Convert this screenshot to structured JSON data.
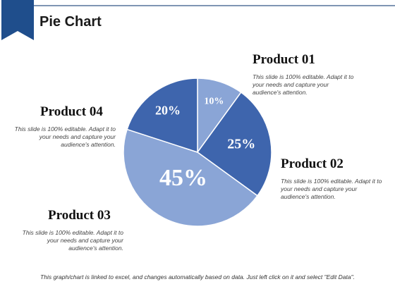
{
  "slide": {
    "title": "Pie Chart",
    "footer": "This graph/chart is linked to excel, and changes automatically based on data. Just left click on it and select \"Edit Data\"."
  },
  "products": [
    {
      "title": "Product 01",
      "description": "This slide is 100% editable. Adapt it to your needs and capture your audience's attention."
    },
    {
      "title": "Product 02",
      "description": "This slide is 100% editable. Adapt it to your needs and capture your audience's attention."
    },
    {
      "title": "Product 03",
      "description": "This slide is 100% editable. Adapt it to your needs and capture your audience's attention."
    },
    {
      "title": "Product 04",
      "description": "This slide is 100% editable. Adapt it to your needs and capture your audience's attention."
    }
  ],
  "colors": {
    "ribbon": "#1f4e8c",
    "rule": "#7f95b3",
    "slice_product_01": "#8aa5d6",
    "slice_product_02": "#3e65ad",
    "slice_product_03": "#8aa5d6",
    "slice_product_04": "#3e65ad"
  },
  "chart_data": {
    "type": "pie",
    "categories": [
      "Product 01",
      "Product 02",
      "Product 03",
      "Product 04"
    ],
    "values": [
      10,
      25,
      45,
      20
    ],
    "data_labels": [
      "10%",
      "25%",
      "45%",
      "20%"
    ],
    "legend": "none"
  }
}
